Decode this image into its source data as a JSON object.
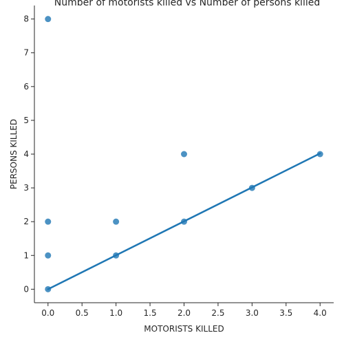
{
  "chart_data": {
    "type": "scatter",
    "title": "Number of motorists killed vs Number of persons killed",
    "xlabel": "MOTORISTS KILLED",
    "ylabel": "PERSONS KILLED",
    "xlim": [
      -0.2,
      4.2
    ],
    "ylim": [
      -0.4,
      8.4
    ],
    "x_ticks": [
      0.0,
      0.5,
      1.0,
      1.5,
      2.0,
      2.5,
      3.0,
      3.5,
      4.0
    ],
    "x_tick_labels": [
      "0.0",
      "0.5",
      "1.0",
      "1.5",
      "2.0",
      "2.5",
      "3.0",
      "3.5",
      "4.0"
    ],
    "y_ticks": [
      0,
      1,
      2,
      3,
      4,
      5,
      6,
      7,
      8
    ],
    "y_tick_labels": [
      "0",
      "1",
      "2",
      "3",
      "4",
      "5",
      "6",
      "7",
      "8"
    ],
    "grid": false,
    "points": [
      {
        "x": 0,
        "y": 0
      },
      {
        "x": 0,
        "y": 1
      },
      {
        "x": 0,
        "y": 2
      },
      {
        "x": 0,
        "y": 8
      },
      {
        "x": 1,
        "y": 1
      },
      {
        "x": 1,
        "y": 2
      },
      {
        "x": 2,
        "y": 2
      },
      {
        "x": 2,
        "y": 4
      },
      {
        "x": 3,
        "y": 3
      },
      {
        "x": 4,
        "y": 4
      }
    ],
    "regression_line": {
      "x": [
        0,
        4
      ],
      "y": [
        0.0,
        4.02
      ]
    },
    "colors": {
      "point": "#1f77b4",
      "line": "#1f77b4",
      "axis": "#262626"
    }
  }
}
